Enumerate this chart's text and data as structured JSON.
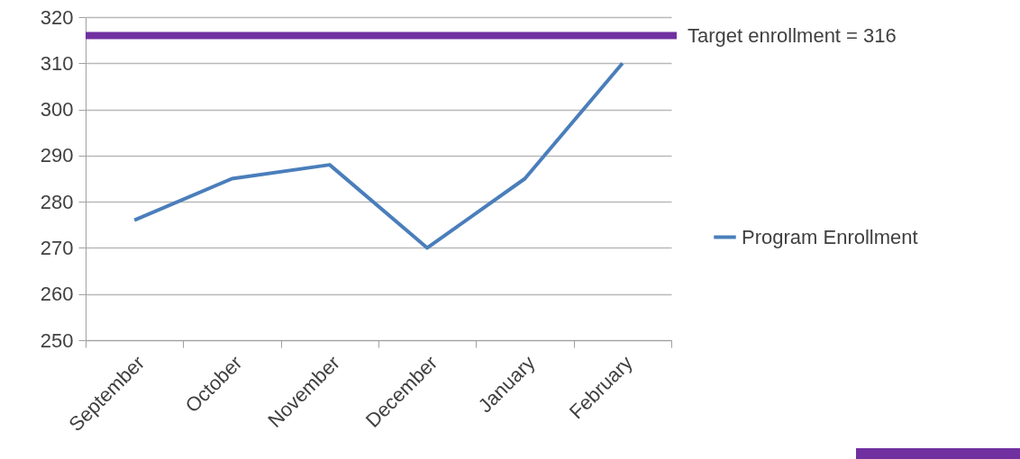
{
  "chart_data": {
    "type": "line",
    "categories": [
      "September",
      "October",
      "November",
      "December",
      "January",
      "February"
    ],
    "series": [
      {
        "name": "Program Enrollment",
        "color": "#4a7ebb",
        "values": [
          276,
          285,
          288,
          270,
          285,
          310
        ]
      }
    ],
    "ylim": [
      250,
      320
    ],
    "yticks": [
      250,
      260,
      270,
      280,
      290,
      300,
      310,
      320
    ],
    "grid": "y",
    "legend": "right",
    "marker": "none",
    "line_style": "solid",
    "ref_lines": [
      {
        "axis": "y",
        "value": 316,
        "label": "Target enrollment = 316",
        "color": "#7030a0"
      }
    ]
  }
}
